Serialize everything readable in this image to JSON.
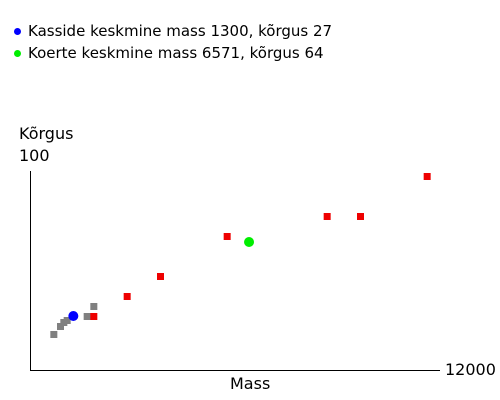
{
  "legend": [
    {
      "label": "Kasside keskmine mass 1300, kõrgus 27",
      "color": "#0000ff"
    },
    {
      "label": "Koerte keskmine mass 6571, kõrgus 64",
      "color": "#00ee00"
    }
  ],
  "chart_data": {
    "type": "scatter",
    "title": "",
    "xlabel": "Mass",
    "ylabel": "Kõrgus",
    "x_max_label": "12000",
    "y_max_label": "100",
    "xlim": [
      0,
      12000
    ],
    "ylim": [
      0,
      100
    ],
    "grid": false,
    "legend_placement": "top-left",
    "series": [
      {
        "color": "#808080",
        "marker": "square",
        "points": [
          [
            700,
            18
          ],
          [
            900,
            22
          ],
          [
            1000,
            24
          ],
          [
            1100,
            25
          ],
          [
            1700,
            27
          ],
          [
            1900,
            32
          ]
        ]
      },
      {
        "color": "#ee0000",
        "marker": "square",
        "points": [
          [
            1900,
            27
          ],
          [
            2900,
            37
          ],
          [
            3900,
            47
          ],
          [
            5900,
            67
          ],
          [
            8900,
            77
          ],
          [
            9900,
            77
          ],
          [
            11900,
            97
          ]
        ]
      },
      {
        "color": "#0000ff",
        "marker": "circle",
        "points": [
          [
            1300,
            27
          ]
        ]
      },
      {
        "color": "#00ee00",
        "marker": "circle",
        "points": [
          [
            6571,
            64
          ]
        ]
      }
    ]
  }
}
